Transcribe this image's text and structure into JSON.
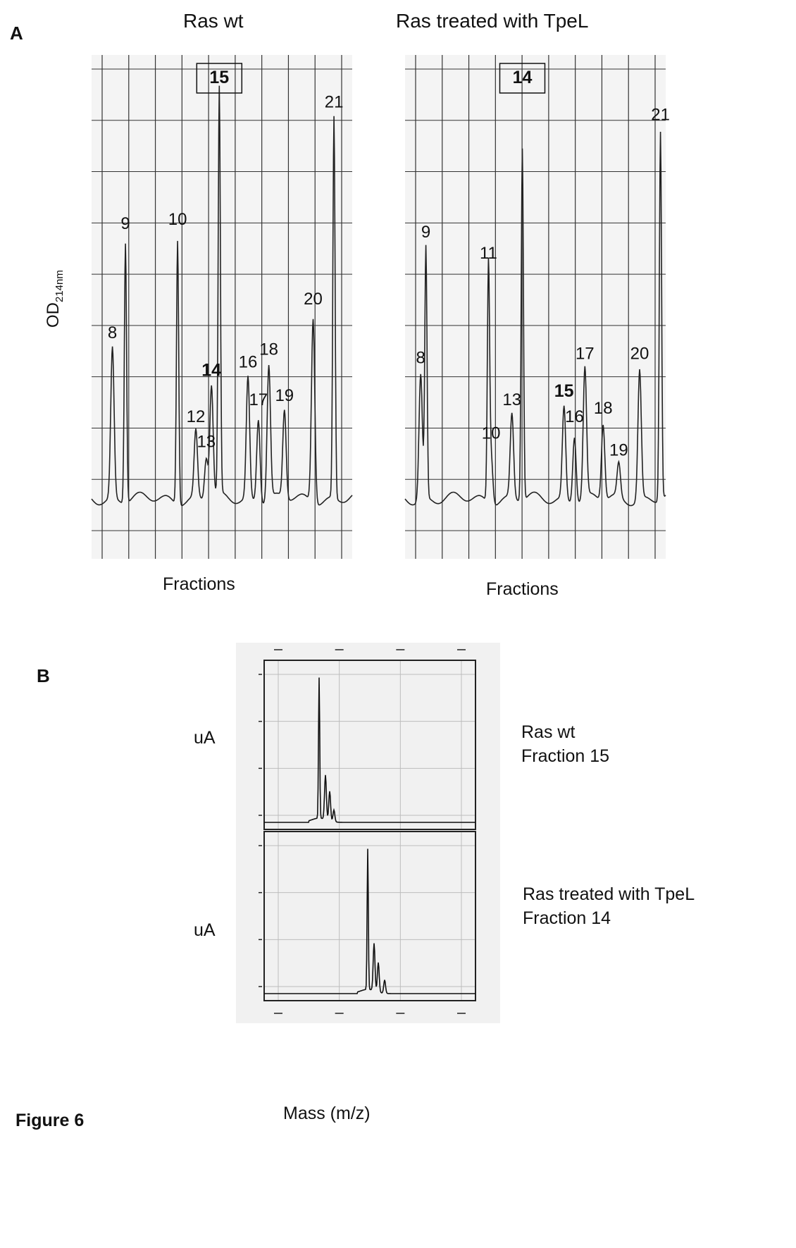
{
  "panel_a": {
    "letter": "A",
    "ylabel_main": "OD",
    "ylabel_sub": "214nm",
    "colors": {
      "grid": "#333333",
      "trace": "#222222",
      "paper": "#f4f4f4"
    }
  },
  "panel_b": {
    "letter": "B",
    "xlabel": "Mass (m/z)",
    "colors": {
      "paper": "#f1f1f1",
      "frame": "#222222",
      "grid": "#bdbdbd",
      "trace": "#111111"
    }
  },
  "figure_caption": "Figure 6",
  "chart_data": [
    {
      "type": "line",
      "title": "Ras wt",
      "xlabel": "Fractions",
      "ylabel": "OD214nm",
      "grid": true,
      "boxed_peak": "15",
      "peaks": [
        {
          "label": "8",
          "x": 0.08,
          "height": 0.36,
          "bold": false
        },
        {
          "label": "9",
          "x": 0.13,
          "height": 0.62,
          "bold": false
        },
        {
          "label": "10",
          "x": 0.33,
          "height": 0.63,
          "bold": false
        },
        {
          "label": "12",
          "x": 0.4,
          "height": 0.16,
          "bold": false
        },
        {
          "label": "13",
          "x": 0.44,
          "height": 0.1,
          "bold": false
        },
        {
          "label": "14",
          "x": 0.46,
          "height": 0.27,
          "bold": true
        },
        {
          "label": "15",
          "x": 0.49,
          "height": 0.97,
          "bold": true
        },
        {
          "label": "16",
          "x": 0.6,
          "height": 0.29,
          "bold": false
        },
        {
          "label": "17",
          "x": 0.64,
          "height": 0.2,
          "bold": false
        },
        {
          "label": "18",
          "x": 0.68,
          "height": 0.32,
          "bold": false
        },
        {
          "label": "19",
          "x": 0.74,
          "height": 0.21,
          "bold": false
        },
        {
          "label": "20",
          "x": 0.85,
          "height": 0.44,
          "bold": false
        },
        {
          "label": "21",
          "x": 0.93,
          "height": 0.91,
          "bold": false
        }
      ]
    },
    {
      "type": "line",
      "title": "Ras treated with TpeL",
      "xlabel": "Fractions",
      "ylabel": "OD214nm",
      "grid": true,
      "boxed_peak": "14",
      "peaks": [
        {
          "label": "8",
          "x": 0.06,
          "height": 0.3,
          "bold": false
        },
        {
          "label": "9",
          "x": 0.08,
          "height": 0.6,
          "bold": false
        },
        {
          "label": "10",
          "x": 0.33,
          "height": 0.12,
          "bold": false
        },
        {
          "label": "11",
          "x": 0.32,
          "height": 0.55,
          "bold": false
        },
        {
          "label": "13",
          "x": 0.41,
          "height": 0.2,
          "bold": false
        },
        {
          "label": "14",
          "x": 0.45,
          "height": 0.84,
          "bold": true
        },
        {
          "label": "15",
          "x": 0.61,
          "height": 0.22,
          "bold": true
        },
        {
          "label": "16",
          "x": 0.65,
          "height": 0.16,
          "bold": false
        },
        {
          "label": "17",
          "x": 0.69,
          "height": 0.31,
          "bold": false
        },
        {
          "label": "18",
          "x": 0.76,
          "height": 0.18,
          "bold": false
        },
        {
          "label": "19",
          "x": 0.82,
          "height": 0.08,
          "bold": false
        },
        {
          "label": "20",
          "x": 0.9,
          "height": 0.31,
          "bold": false
        },
        {
          "label": "21",
          "x": 0.98,
          "height": 0.88,
          "bold": false
        }
      ]
    },
    {
      "type": "line",
      "title": "",
      "ylabel": "uA",
      "xlabel": "Mass (m/z)",
      "annotation": [
        "Ras wt",
        "Fraction 15"
      ],
      "grid": true,
      "peaks": [
        {
          "x": 0.26,
          "height": 0.95
        },
        {
          "x": 0.29,
          "height": 0.3
        },
        {
          "x": 0.31,
          "height": 0.2
        },
        {
          "x": 0.33,
          "height": 0.08
        }
      ]
    },
    {
      "type": "line",
      "title": "",
      "ylabel": "uA",
      "xlabel": "Mass (m/z)",
      "annotation": [
        "Ras treated with TpeL",
        "Fraction 14"
      ],
      "grid": true,
      "peaks": [
        {
          "x": 0.49,
          "height": 0.95
        },
        {
          "x": 0.52,
          "height": 0.32
        },
        {
          "x": 0.54,
          "height": 0.2
        },
        {
          "x": 0.57,
          "height": 0.09
        }
      ]
    }
  ]
}
